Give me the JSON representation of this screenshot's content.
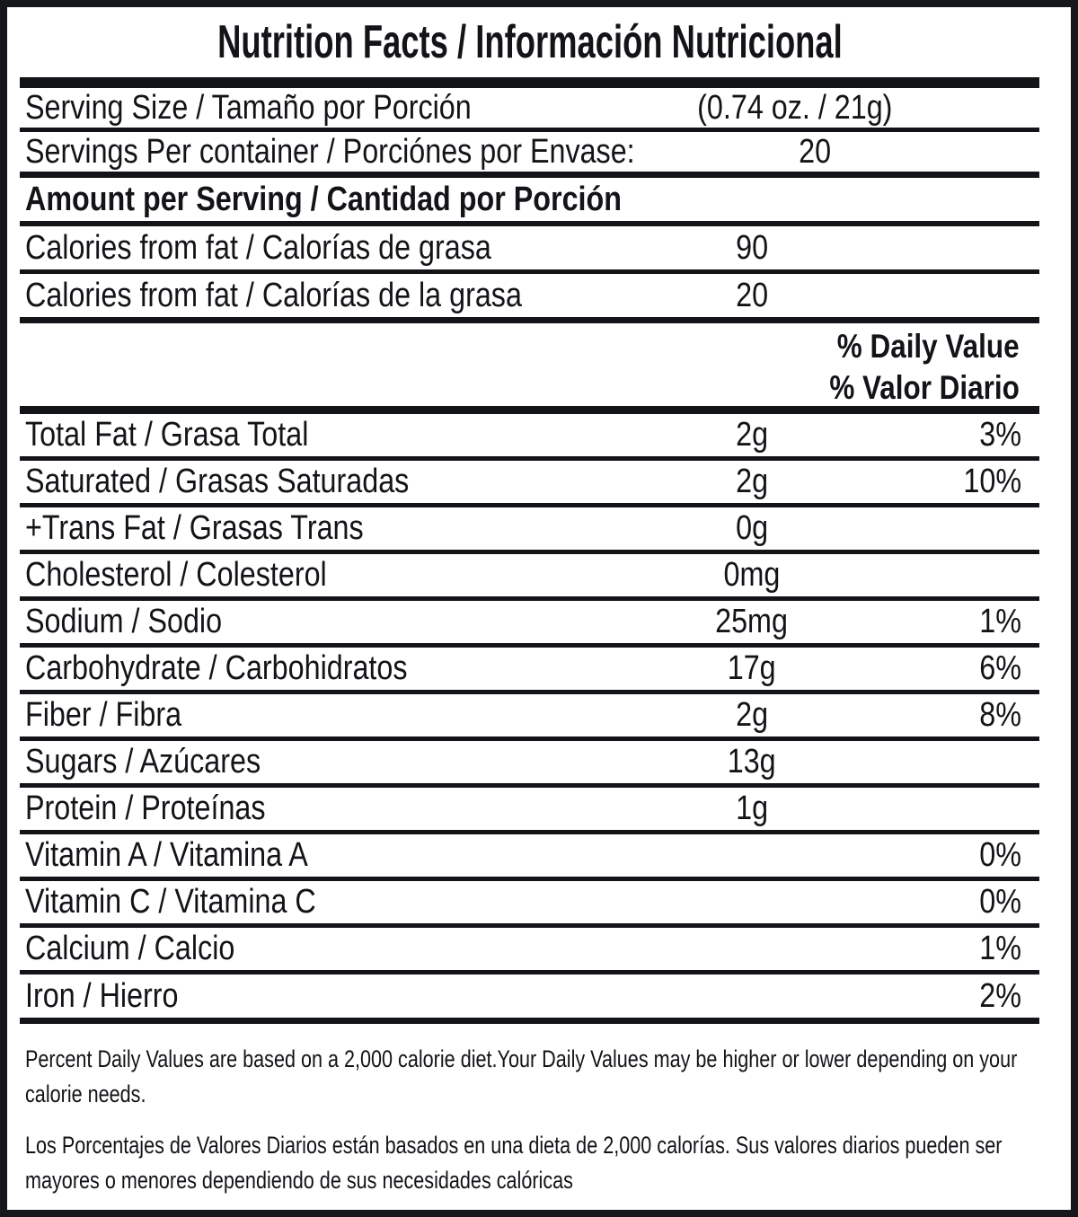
{
  "title": "Nutrition Facts / Información Nutricional",
  "serving": {
    "size_label": "Serving Size / Tamaño por Porción",
    "size_value": "(0.74 oz. / 21g)",
    "per_container_label": "Servings Per container / Porciónes por Envase:",
    "per_container_value": "20"
  },
  "amount_per_serving": {
    "header": "Amount per Serving / Cantidad por Porción",
    "calories_rows": [
      {
        "label": "Calories from fat / Calorías de grasa",
        "amount": "90"
      },
      {
        "label": "Calories from fat / Calorías de la grasa",
        "amount": "20"
      }
    ]
  },
  "daily_value_header": {
    "en": "% Daily Value",
    "es": "% Valor Diario"
  },
  "nutrients": [
    {
      "label": "Total Fat / Grasa Total",
      "amount": "2g",
      "dv": "3%"
    },
    {
      "label": "Saturated / Grasas Saturadas",
      "amount": "2g",
      "dv": "10%"
    },
    {
      "label": "+Trans Fat / Grasas Trans",
      "amount": "0g",
      "dv": ""
    },
    {
      "label": "Cholesterol / Colesterol",
      "amount": "0mg",
      "dv": ""
    },
    {
      "label": "Sodium / Sodio",
      "amount": "25mg",
      "dv": "1%"
    },
    {
      "label": "Carbohydrate / Carbohidratos",
      "amount": "17g",
      "dv": "6%"
    },
    {
      "label": "Fiber / Fibra",
      "amount": "2g",
      "dv": "8%"
    },
    {
      "label": "Sugars / Azúcares",
      "amount": "13g",
      "dv": ""
    },
    {
      "label": "Protein / Proteínas",
      "amount": "1g",
      "dv": ""
    },
    {
      "label": "Vitamin A / Vitamina A",
      "amount": "",
      "dv": "0%"
    },
    {
      "label": "Vitamin C / Vitamina C",
      "amount": "",
      "dv": "0%"
    },
    {
      "label": "Calcium / Calcio",
      "amount": "",
      "dv": "1%"
    },
    {
      "label": "Iron / Hierro",
      "amount": "",
      "dv": "2%"
    }
  ],
  "footnotes": {
    "en_line1": "Percent Daily Values are based on a 2,000 calorie diet.Your Daily Values may be higher or lower depending on your",
    "en_line2": "calorie needs.",
    "es_line1": "Los Porcentajes de Valores Diarios están basados en una dieta de 2,000 calorías. Sus valores diarios pueden ser",
    "es_line2": "mayores o menores dependiendo de sus necesidades calóricas"
  },
  "colors": {
    "text": "#131418",
    "background": "#ffffff",
    "border": "#16171b"
  }
}
